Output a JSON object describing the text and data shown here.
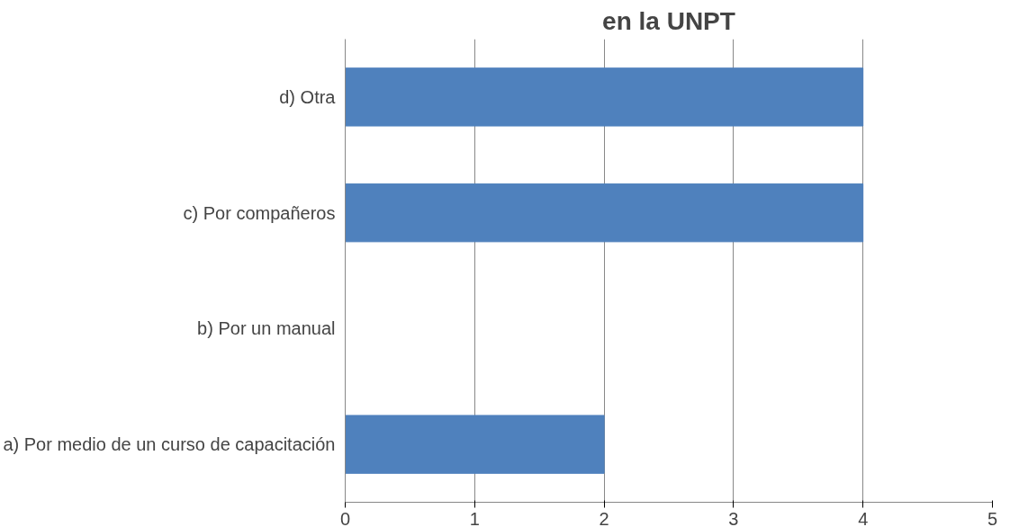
{
  "chart_data": {
    "type": "bar",
    "orientation": "horizontal",
    "title": "en la UNPT",
    "categories": [
      "d) Otra",
      "c) Por compañeros",
      "b) Por un manual",
      "a) Por medio de un curso de capacitación"
    ],
    "values": [
      4,
      4,
      0,
      2
    ],
    "color": "#4f81bd",
    "xlim": [
      0,
      5
    ],
    "xticks": [
      0,
      1,
      2,
      3,
      4,
      5
    ],
    "grid": "x"
  }
}
